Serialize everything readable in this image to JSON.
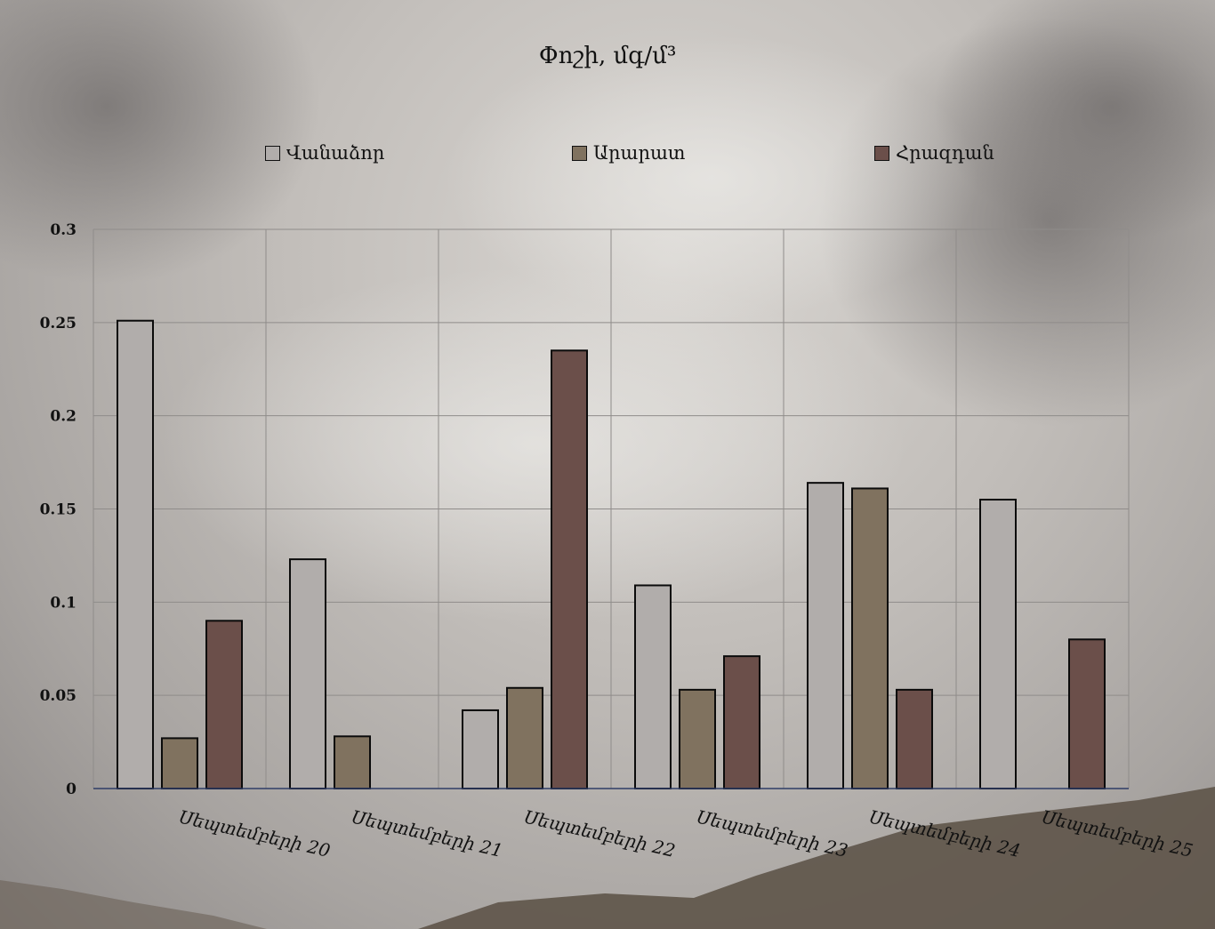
{
  "chart_data": {
    "type": "bar",
    "title": "Փոշի, մգ/մ³",
    "categories": [
      "Սեպտեմբերի 20",
      "Սեպտեմբերի 21",
      "Սեպտեմբերի 22",
      "Սեպտեմբերի 23",
      "Սեպտեմբերի 24",
      "Սեպտեմբերի 25"
    ],
    "series": [
      {
        "name": "Վանաձոր",
        "color": "#b1adab",
        "values": [
          0.251,
          0.123,
          0.042,
          0.109,
          0.164,
          0.155
        ]
      },
      {
        "name": "Արարատ",
        "color": "#80725f",
        "values": [
          0.027,
          0.028,
          0.054,
          0.053,
          0.161,
          null
        ]
      },
      {
        "name": "Հրազդան",
        "color": "#6b4f4a",
        "values": [
          0.09,
          null,
          0.235,
          0.071,
          0.053,
          0.08
        ]
      }
    ],
    "ylim": [
      0,
      0.3
    ],
    "yticks": [
      "0",
      "0.05",
      "0.1",
      "0.15",
      "0.2",
      "0.25",
      "0.3"
    ],
    "grid": true,
    "legend_position": "top"
  }
}
